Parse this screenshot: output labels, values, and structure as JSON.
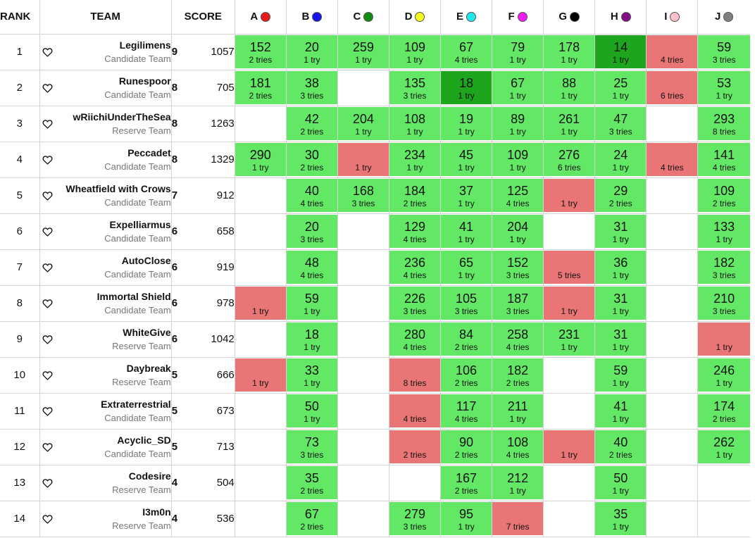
{
  "headers": {
    "rank": "RANK",
    "team": "TEAM",
    "score": "SCORE"
  },
  "problems": [
    {
      "letter": "A",
      "color": "#e8191a"
    },
    {
      "letter": "B",
      "color": "#1515e8"
    },
    {
      "letter": "C",
      "color": "#138a13"
    },
    {
      "letter": "D",
      "color": "#f7f71c"
    },
    {
      "letter": "E",
      "color": "#1ce8ee"
    },
    {
      "letter": "F",
      "color": "#ee1cee"
    },
    {
      "letter": "G",
      "color": "#000000"
    },
    {
      "letter": "H",
      "color": "#850e85"
    },
    {
      "letter": "I",
      "color": "#ffc0cb"
    },
    {
      "letter": "J",
      "color": "#808080"
    }
  ],
  "rows": [
    {
      "rank": "1",
      "name": "Legilimens",
      "category": "Candidate Team",
      "solved": "9",
      "points": "1057",
      "cells": [
        {
          "s": "ok",
          "time": "152",
          "tries": "2 tries"
        },
        {
          "s": "ok",
          "time": "20",
          "tries": "1 try"
        },
        {
          "s": "ok",
          "time": "259",
          "tries": "1 try"
        },
        {
          "s": "ok",
          "time": "109",
          "tries": "1 try"
        },
        {
          "s": "ok",
          "time": "67",
          "tries": "4 tries"
        },
        {
          "s": "ok",
          "time": "79",
          "tries": "1 try"
        },
        {
          "s": "ok",
          "time": "178",
          "tries": "1 try"
        },
        {
          "s": "first",
          "time": "14",
          "tries": "1 try"
        },
        {
          "s": "fail",
          "time": "",
          "tries": "4 tries"
        },
        {
          "s": "ok",
          "time": "59",
          "tries": "3 tries"
        }
      ]
    },
    {
      "rank": "2",
      "name": "Runespoor",
      "category": "Candidate Team",
      "solved": "8",
      "points": "705",
      "cells": [
        {
          "s": "ok",
          "time": "181",
          "tries": "2 tries"
        },
        {
          "s": "ok",
          "time": "38",
          "tries": "3 tries"
        },
        {
          "s": "empty",
          "time": "",
          "tries": ""
        },
        {
          "s": "ok",
          "time": "135",
          "tries": "3 tries"
        },
        {
          "s": "first",
          "time": "18",
          "tries": "1 try"
        },
        {
          "s": "ok",
          "time": "67",
          "tries": "1 try"
        },
        {
          "s": "ok",
          "time": "88",
          "tries": "1 try"
        },
        {
          "s": "ok",
          "time": "25",
          "tries": "1 try"
        },
        {
          "s": "fail",
          "time": "",
          "tries": "6 tries"
        },
        {
          "s": "ok",
          "time": "53",
          "tries": "1 try"
        }
      ]
    },
    {
      "rank": "3",
      "name": "wRiichiUnderTheSea",
      "category": "Reserve Team",
      "solved": "8",
      "points": "1263",
      "cells": [
        {
          "s": "empty",
          "time": "",
          "tries": ""
        },
        {
          "s": "ok",
          "time": "42",
          "tries": "2 tries"
        },
        {
          "s": "ok",
          "time": "204",
          "tries": "1 try"
        },
        {
          "s": "ok",
          "time": "108",
          "tries": "1 try"
        },
        {
          "s": "ok",
          "time": "19",
          "tries": "1 try"
        },
        {
          "s": "ok",
          "time": "89",
          "tries": "1 try"
        },
        {
          "s": "ok",
          "time": "261",
          "tries": "1 try"
        },
        {
          "s": "ok",
          "time": "47",
          "tries": "3 tries"
        },
        {
          "s": "empty",
          "time": "",
          "tries": ""
        },
        {
          "s": "ok",
          "time": "293",
          "tries": "8 tries"
        }
      ]
    },
    {
      "rank": "4",
      "name": "Peccadet",
      "category": "Candidate Team",
      "solved": "8",
      "points": "1329",
      "cells": [
        {
          "s": "ok",
          "time": "290",
          "tries": "1 try"
        },
        {
          "s": "ok",
          "time": "30",
          "tries": "2 tries"
        },
        {
          "s": "fail",
          "time": "",
          "tries": "1 try"
        },
        {
          "s": "ok",
          "time": "234",
          "tries": "1 try"
        },
        {
          "s": "ok",
          "time": "45",
          "tries": "1 try"
        },
        {
          "s": "ok",
          "time": "109",
          "tries": "1 try"
        },
        {
          "s": "ok",
          "time": "276",
          "tries": "6 tries"
        },
        {
          "s": "ok",
          "time": "24",
          "tries": "1 try"
        },
        {
          "s": "fail",
          "time": "",
          "tries": "4 tries"
        },
        {
          "s": "ok",
          "time": "141",
          "tries": "4 tries"
        }
      ]
    },
    {
      "rank": "5",
      "name": "Wheatfield with Crows",
      "category": "Candidate Team",
      "solved": "7",
      "points": "912",
      "cells": [
        {
          "s": "empty",
          "time": "",
          "tries": ""
        },
        {
          "s": "ok",
          "time": "40",
          "tries": "4 tries"
        },
        {
          "s": "ok",
          "time": "168",
          "tries": "3 tries"
        },
        {
          "s": "ok",
          "time": "184",
          "tries": "2 tries"
        },
        {
          "s": "ok",
          "time": "37",
          "tries": "1 try"
        },
        {
          "s": "ok",
          "time": "125",
          "tries": "4 tries"
        },
        {
          "s": "fail",
          "time": "",
          "tries": "1 try"
        },
        {
          "s": "ok",
          "time": "29",
          "tries": "2 tries"
        },
        {
          "s": "empty",
          "time": "",
          "tries": ""
        },
        {
          "s": "ok",
          "time": "109",
          "tries": "2 tries"
        }
      ]
    },
    {
      "rank": "6",
      "name": "Expelliarmus",
      "category": "Candidate Team",
      "solved": "6",
      "points": "658",
      "cells": [
        {
          "s": "empty",
          "time": "",
          "tries": ""
        },
        {
          "s": "ok",
          "time": "20",
          "tries": "3 tries"
        },
        {
          "s": "empty",
          "time": "",
          "tries": ""
        },
        {
          "s": "ok",
          "time": "129",
          "tries": "4 tries"
        },
        {
          "s": "ok",
          "time": "41",
          "tries": "1 try"
        },
        {
          "s": "ok",
          "time": "204",
          "tries": "1 try"
        },
        {
          "s": "empty",
          "time": "",
          "tries": ""
        },
        {
          "s": "ok",
          "time": "31",
          "tries": "1 try"
        },
        {
          "s": "empty",
          "time": "",
          "tries": ""
        },
        {
          "s": "ok",
          "time": "133",
          "tries": "1 try"
        }
      ]
    },
    {
      "rank": "7",
      "name": "AutoClose",
      "category": "Candidate Team",
      "solved": "6",
      "points": "919",
      "cells": [
        {
          "s": "empty",
          "time": "",
          "tries": ""
        },
        {
          "s": "ok",
          "time": "48",
          "tries": "4 tries"
        },
        {
          "s": "empty",
          "time": "",
          "tries": ""
        },
        {
          "s": "ok",
          "time": "236",
          "tries": "4 tries"
        },
        {
          "s": "ok",
          "time": "65",
          "tries": "1 try"
        },
        {
          "s": "ok",
          "time": "152",
          "tries": "3 tries"
        },
        {
          "s": "fail",
          "time": "",
          "tries": "5 tries"
        },
        {
          "s": "ok",
          "time": "36",
          "tries": "1 try"
        },
        {
          "s": "empty",
          "time": "",
          "tries": ""
        },
        {
          "s": "ok",
          "time": "182",
          "tries": "3 tries"
        }
      ]
    },
    {
      "rank": "8",
      "name": "Immortal Shield",
      "category": "Candidate Team",
      "solved": "6",
      "points": "978",
      "cells": [
        {
          "s": "fail",
          "time": "",
          "tries": "1 try"
        },
        {
          "s": "ok",
          "time": "59",
          "tries": "1 try"
        },
        {
          "s": "empty",
          "time": "",
          "tries": ""
        },
        {
          "s": "ok",
          "time": "226",
          "tries": "3 tries"
        },
        {
          "s": "ok",
          "time": "105",
          "tries": "3 tries"
        },
        {
          "s": "ok",
          "time": "187",
          "tries": "3 tries"
        },
        {
          "s": "fail",
          "time": "",
          "tries": "1 try"
        },
        {
          "s": "ok",
          "time": "31",
          "tries": "1 try"
        },
        {
          "s": "empty",
          "time": "",
          "tries": ""
        },
        {
          "s": "ok",
          "time": "210",
          "tries": "3 tries"
        }
      ]
    },
    {
      "rank": "9",
      "name": "WhiteGive",
      "category": "Reserve Team",
      "solved": "6",
      "points": "1042",
      "cells": [
        {
          "s": "empty",
          "time": "",
          "tries": ""
        },
        {
          "s": "ok",
          "time": "18",
          "tries": "1 try"
        },
        {
          "s": "empty",
          "time": "",
          "tries": ""
        },
        {
          "s": "ok",
          "time": "280",
          "tries": "4 tries"
        },
        {
          "s": "ok",
          "time": "84",
          "tries": "2 tries"
        },
        {
          "s": "ok",
          "time": "258",
          "tries": "4 tries"
        },
        {
          "s": "ok",
          "time": "231",
          "tries": "1 try"
        },
        {
          "s": "ok",
          "time": "31",
          "tries": "1 try"
        },
        {
          "s": "empty",
          "time": "",
          "tries": ""
        },
        {
          "s": "fail",
          "time": "",
          "tries": "1 try"
        }
      ]
    },
    {
      "rank": "10",
      "name": "Daybreak",
      "category": "Reserve Team",
      "solved": "5",
      "points": "666",
      "cells": [
        {
          "s": "fail",
          "time": "",
          "tries": "1 try"
        },
        {
          "s": "ok",
          "time": "33",
          "tries": "1 try"
        },
        {
          "s": "empty",
          "time": "",
          "tries": ""
        },
        {
          "s": "fail",
          "time": "",
          "tries": "8 tries"
        },
        {
          "s": "ok",
          "time": "106",
          "tries": "2 tries"
        },
        {
          "s": "ok",
          "time": "182",
          "tries": "2 tries"
        },
        {
          "s": "empty",
          "time": "",
          "tries": ""
        },
        {
          "s": "ok",
          "time": "59",
          "tries": "1 try"
        },
        {
          "s": "empty",
          "time": "",
          "tries": ""
        },
        {
          "s": "ok",
          "time": "246",
          "tries": "1 try"
        }
      ]
    },
    {
      "rank": "11",
      "name": "Extraterrestrial",
      "category": "Candidate Team",
      "solved": "5",
      "points": "673",
      "cells": [
        {
          "s": "empty",
          "time": "",
          "tries": ""
        },
        {
          "s": "ok",
          "time": "50",
          "tries": "1 try"
        },
        {
          "s": "empty",
          "time": "",
          "tries": ""
        },
        {
          "s": "fail",
          "time": "",
          "tries": "4 tries"
        },
        {
          "s": "ok",
          "time": "117",
          "tries": "4 tries"
        },
        {
          "s": "ok",
          "time": "211",
          "tries": "1 try"
        },
        {
          "s": "empty",
          "time": "",
          "tries": ""
        },
        {
          "s": "ok",
          "time": "41",
          "tries": "1 try"
        },
        {
          "s": "empty",
          "time": "",
          "tries": ""
        },
        {
          "s": "ok",
          "time": "174",
          "tries": "2 tries"
        }
      ]
    },
    {
      "rank": "12",
      "name": "Acyclic_SD",
      "category": "Candidate Team",
      "solved": "5",
      "points": "713",
      "cells": [
        {
          "s": "empty",
          "time": "",
          "tries": ""
        },
        {
          "s": "ok",
          "time": "73",
          "tries": "3 tries"
        },
        {
          "s": "empty",
          "time": "",
          "tries": ""
        },
        {
          "s": "fail",
          "time": "",
          "tries": "2 tries"
        },
        {
          "s": "ok",
          "time": "90",
          "tries": "2 tries"
        },
        {
          "s": "ok",
          "time": "108",
          "tries": "4 tries"
        },
        {
          "s": "fail",
          "time": "",
          "tries": "1 try"
        },
        {
          "s": "ok",
          "time": "40",
          "tries": "2 tries"
        },
        {
          "s": "empty",
          "time": "",
          "tries": ""
        },
        {
          "s": "ok",
          "time": "262",
          "tries": "1 try"
        }
      ]
    },
    {
      "rank": "13",
      "name": "Codesire",
      "category": "Reserve Team",
      "solved": "4",
      "points": "504",
      "cells": [
        {
          "s": "empty",
          "time": "",
          "tries": ""
        },
        {
          "s": "ok",
          "time": "35",
          "tries": "2 tries"
        },
        {
          "s": "empty",
          "time": "",
          "tries": ""
        },
        {
          "s": "empty",
          "time": "",
          "tries": ""
        },
        {
          "s": "ok",
          "time": "167",
          "tries": "2 tries"
        },
        {
          "s": "ok",
          "time": "212",
          "tries": "1 try"
        },
        {
          "s": "empty",
          "time": "",
          "tries": ""
        },
        {
          "s": "ok",
          "time": "50",
          "tries": "1 try"
        },
        {
          "s": "empty",
          "time": "",
          "tries": ""
        },
        {
          "s": "empty",
          "time": "",
          "tries": ""
        }
      ]
    },
    {
      "rank": "14",
      "name": "I3m0n",
      "category": "Reserve Team",
      "solved": "4",
      "points": "536",
      "cells": [
        {
          "s": "empty",
          "time": "",
          "tries": ""
        },
        {
          "s": "ok",
          "time": "67",
          "tries": "2 tries"
        },
        {
          "s": "empty",
          "time": "",
          "tries": ""
        },
        {
          "s": "ok",
          "time": "279",
          "tries": "3 tries"
        },
        {
          "s": "ok",
          "time": "95",
          "tries": "1 try"
        },
        {
          "s": "fail",
          "time": "",
          "tries": "7 tries"
        },
        {
          "s": "empty",
          "time": "",
          "tries": ""
        },
        {
          "s": "ok",
          "time": "35",
          "tries": "1 try"
        },
        {
          "s": "empty",
          "time": "",
          "tries": ""
        },
        {
          "s": "empty",
          "time": "",
          "tries": ""
        }
      ]
    }
  ]
}
